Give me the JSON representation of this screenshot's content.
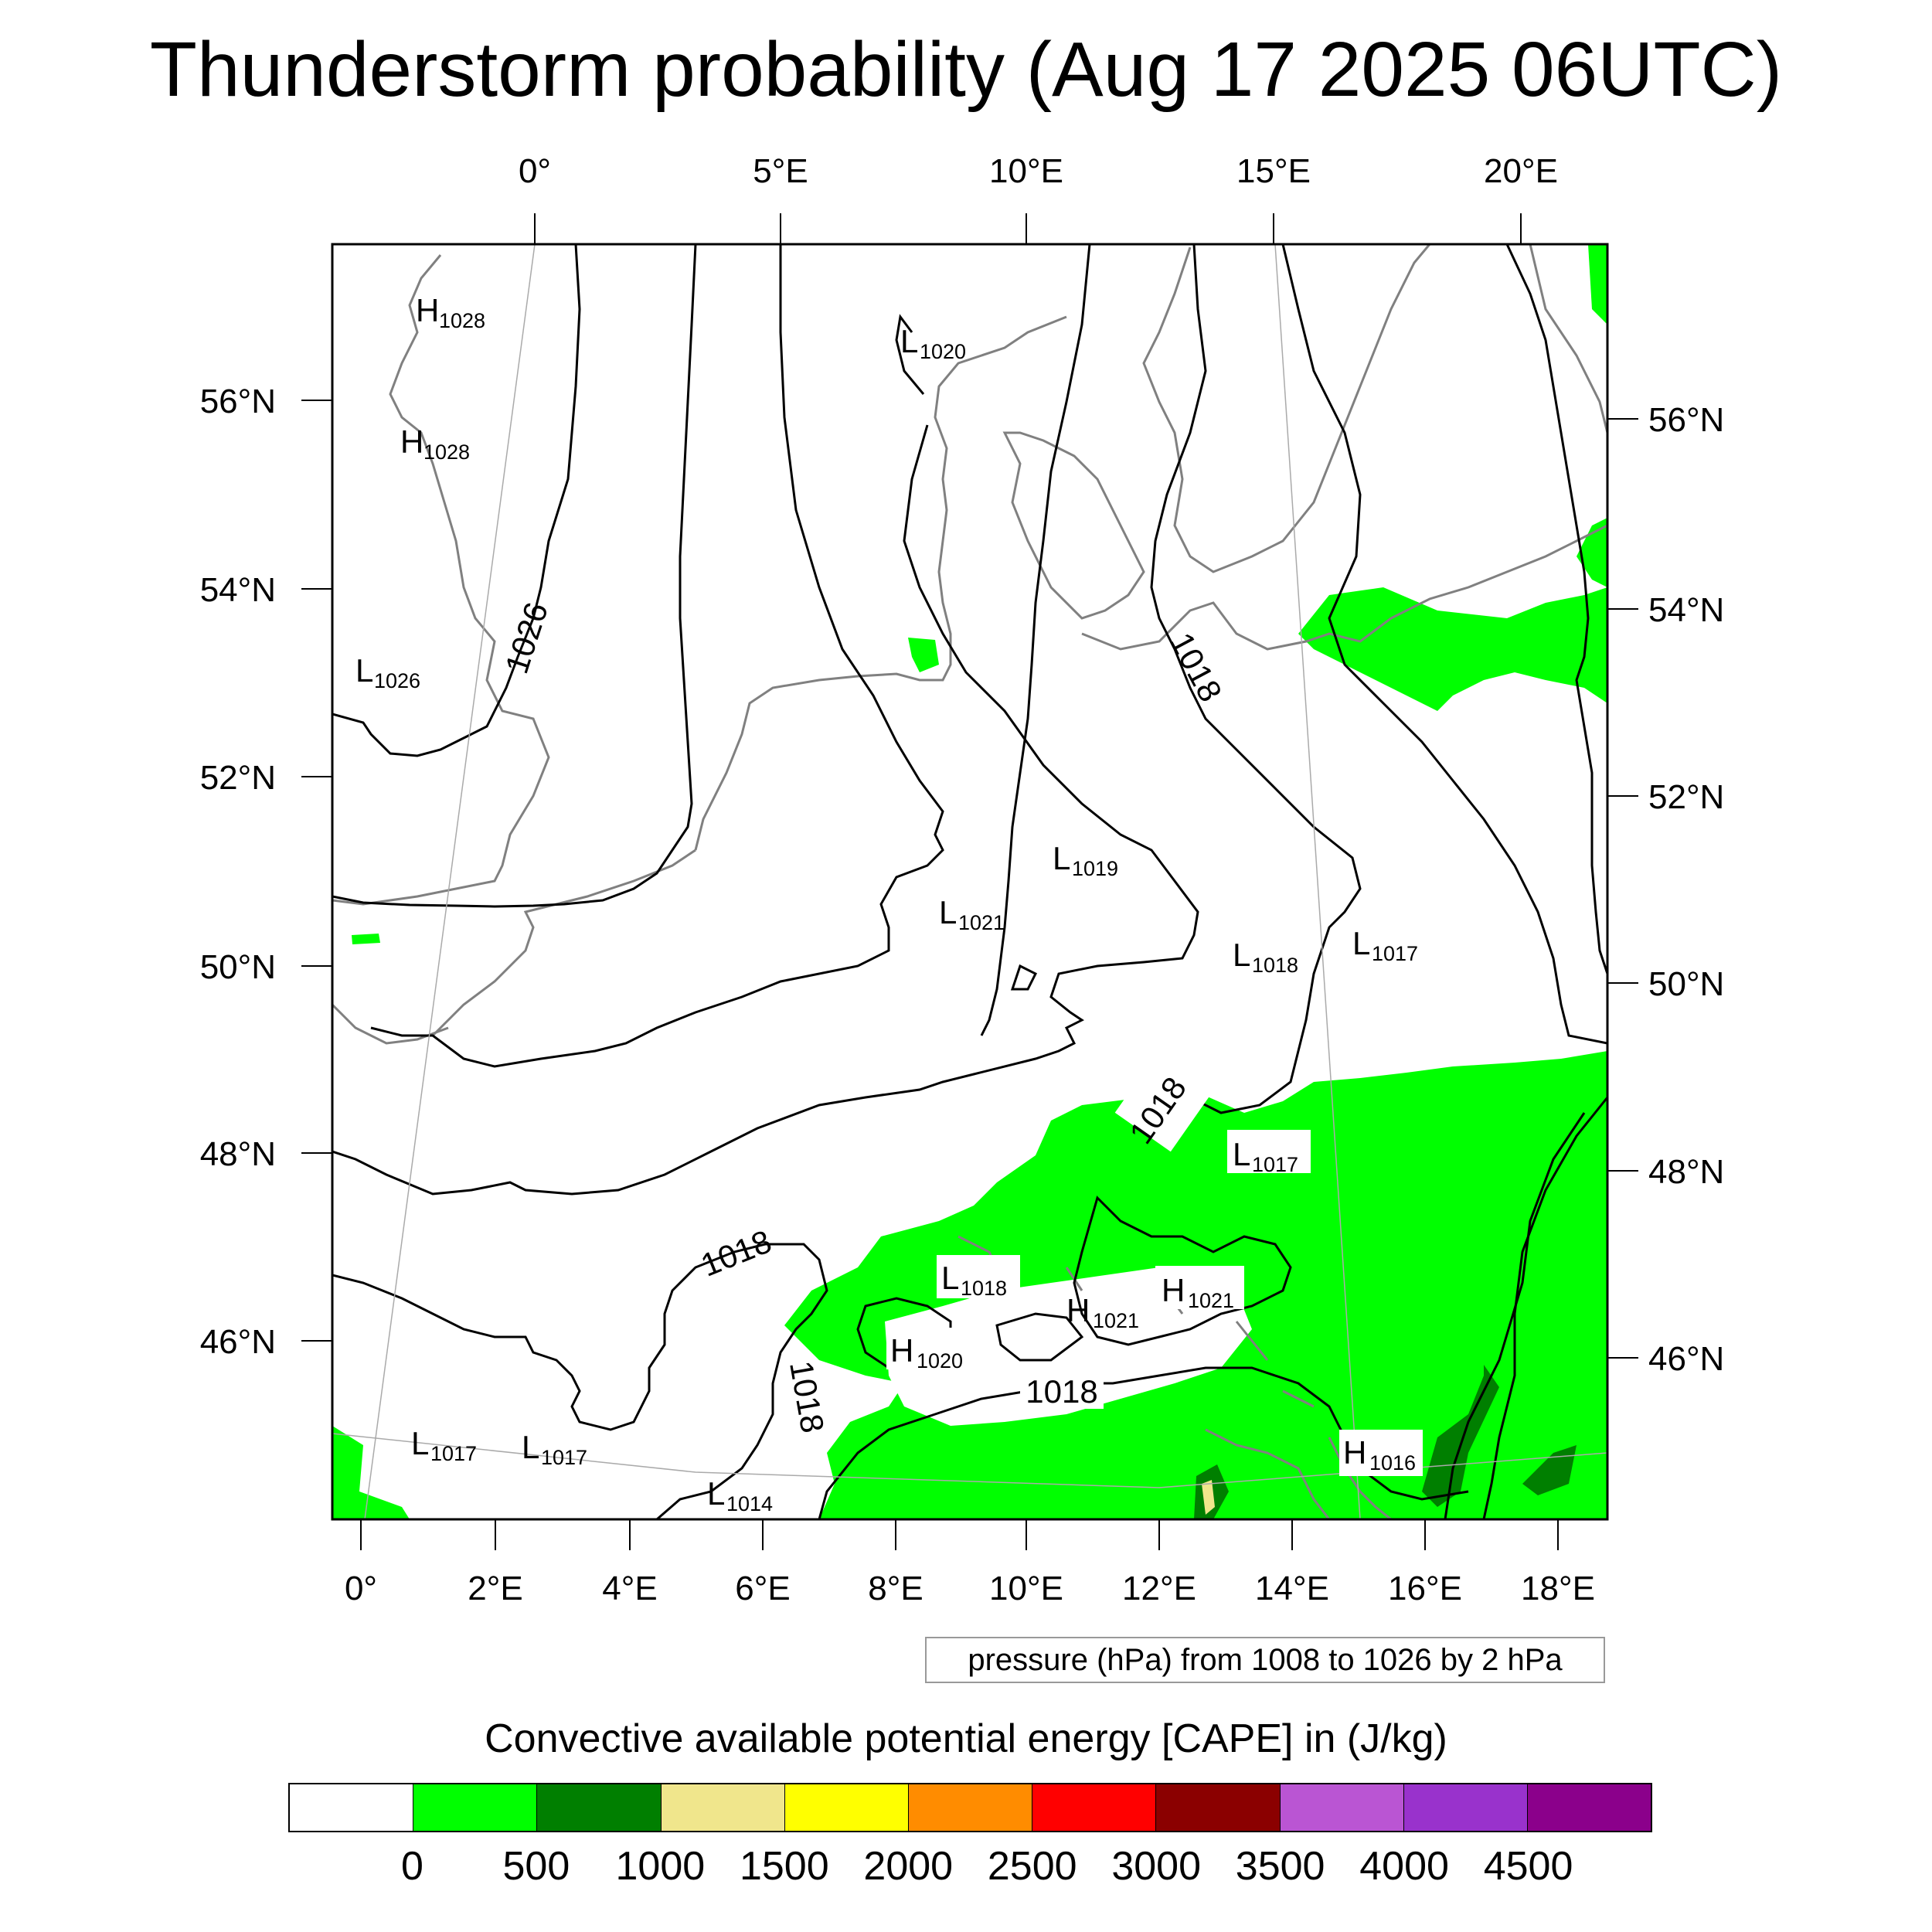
{
  "title": "Thunderstorm probability (Aug 17 2025 06UTC)",
  "map": {
    "top_lon_ticks": [
      "0°",
      "5°E",
      "10°E",
      "15°E",
      "20°E"
    ],
    "bottom_lon_ticks": [
      "0°",
      "2°E",
      "4°E",
      "6°E",
      "8°E",
      "10°E",
      "12°E",
      "14°E",
      "16°E",
      "18°E"
    ],
    "left_lat_ticks": [
      "56°N",
      "54°N",
      "52°N",
      "50°N",
      "48°N",
      "46°N"
    ],
    "right_lat_ticks": [
      "56°N",
      "54°N",
      "52°N",
      "50°N",
      "48°N",
      "46°N"
    ],
    "contour_labels": [
      "1026",
      "1018",
      "1018",
      "1018",
      "1018",
      "1018"
    ],
    "pressure_centers": [
      {
        "type": "H",
        "value": "1028"
      },
      {
        "type": "H",
        "value": "1028"
      },
      {
        "type": "L",
        "value": "1026"
      },
      {
        "type": "L",
        "value": "1020"
      },
      {
        "type": "L",
        "value": "1021"
      },
      {
        "type": "L",
        "value": "1019"
      },
      {
        "type": "L",
        "value": "1018"
      },
      {
        "type": "L",
        "value": "1017"
      },
      {
        "type": "L",
        "value": "1017"
      },
      {
        "type": "L",
        "value": "1018"
      },
      {
        "type": "H",
        "value": "1021"
      },
      {
        "type": "H",
        "value": "1021"
      },
      {
        "type": "H",
        "value": "1020"
      },
      {
        "type": "L",
        "value": "1017"
      },
      {
        "type": "L",
        "value": "1017"
      },
      {
        "type": "L",
        "value": "1014"
      },
      {
        "type": "H",
        "value": "1016"
      }
    ],
    "colors": {
      "cape_0_500": "#00ff00",
      "cape_500_1000": "#007f00",
      "cape_1000_1500": "#f0e68c",
      "coastline": "#808080",
      "isobar": "#000000"
    }
  },
  "contour_info": "pressure (hPa) from 1008 to 1026 by 2 hPa",
  "legend": {
    "title": "Convective available potential energy [CAPE] in (J/kg)",
    "colors": [
      "#ffffff",
      "#00ff00",
      "#007f00",
      "#f0e68c",
      "#ffff00",
      "#ff8c00",
      "#ff0000",
      "#8b0000",
      "#ba55d3",
      "#9932cc",
      "#8b008b"
    ],
    "labels": [
      "0",
      "500",
      "1000",
      "1500",
      "2000",
      "2500",
      "3000",
      "3500",
      "4000",
      "4500"
    ]
  }
}
